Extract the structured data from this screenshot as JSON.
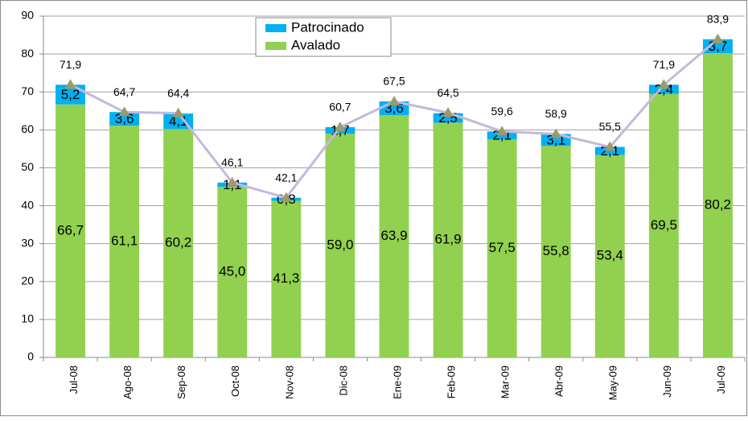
{
  "chart_data": {
    "type": "stacked-bar-line",
    "categories": [
      "Jul-08",
      "Ago-08",
      "Sep-08",
      "Oct-08",
      "Nov-08",
      "Dic-08",
      "Ene-09",
      "Feb-09",
      "Mar-09",
      "Abr-09",
      "May-09",
      "Jun-09",
      "Jul-09"
    ],
    "series": [
      {
        "name": "Avalado",
        "color": "#92d050",
        "values": [
          66.7,
          61.1,
          60.2,
          45.0,
          41.3,
          59.0,
          63.9,
          61.9,
          57.5,
          55.8,
          53.4,
          69.5,
          80.2
        ],
        "value_labels": [
          "66,7",
          "61,1",
          "60,2",
          "45,0",
          "41,3",
          "59,0",
          "63,9",
          "61,9",
          "57,5",
          "55,8",
          "53,4",
          "69,5",
          "80,2"
        ]
      },
      {
        "name": "Patrocinado",
        "color": "#00b0f0",
        "values": [
          5.2,
          3.6,
          4.1,
          1.1,
          0.8,
          1.7,
          3.6,
          2.5,
          2.1,
          3.1,
          2.1,
          2.4,
          3.7
        ],
        "value_labels": [
          "5,2",
          "3,6",
          "4,1",
          "1,1",
          "0,8",
          "1,7",
          "3,6",
          "2,5",
          "2,1",
          "3,1",
          "2,1",
          "2,4",
          "3,7"
        ]
      }
    ],
    "line": {
      "color": "#c5b8dc",
      "marker_color": "#9c9a6a",
      "values": [
        71.9,
        64.7,
        64.4,
        46.1,
        42.1,
        60.7,
        67.5,
        64.5,
        59.6,
        58.9,
        55.5,
        71.9,
        83.9
      ],
      "value_labels": [
        "71,9",
        "64,7",
        "64,4",
        "46,1",
        "42,1",
        "60,7",
        "67,5",
        "64,5",
        "59,6",
        "58,9",
        "55,5",
        "71,9",
        "83,9"
      ]
    },
    "ylim": [
      0,
      90
    ],
    "yticks": [
      0,
      10,
      20,
      30,
      40,
      50,
      60,
      70,
      80,
      90
    ],
    "grid": true
  }
}
